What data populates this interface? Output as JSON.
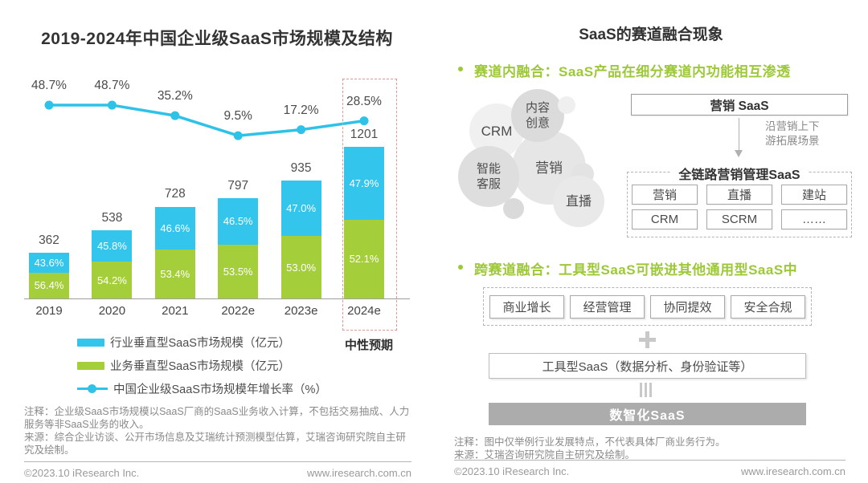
{
  "brand": {
    "copyright": "©2023.10 iResearch Inc.",
    "website": "www.iresearch.com.cn"
  },
  "colors": {
    "industry_blue": "#33C5EB",
    "business_green": "#A5CE3B",
    "growth_line_cyan": "#2FC2E8",
    "bullet_green": "#9DC838",
    "forecast_dashed_red": "#DC9B95",
    "digital_box_gray": "#ACACAC"
  },
  "left_panel": {
    "title": "2019-2024年中国企业级SaaS市场规模及结构",
    "forecast_label": "中性预期",
    "legend": {
      "items": [
        {
          "label": "行业垂直型SaaS市场规模（亿元）"
        },
        {
          "label": "业务垂直型SaaS市场规模（亿元）"
        },
        {
          "label": "中国企业级SaaS市场规模年增长率（%）"
        }
      ]
    },
    "notes": {
      "note1": "注释：企业级SaaS市场规模以SaaS厂商的SaaS业务收入计算，不包括交易抽成、人力服务等非SaaS业务的收入。",
      "note2": "来源：综合企业访谈、公开市场信息及艾瑞统计预测模型估算，艾瑞咨询研究院自主研究及绘制。"
    },
    "chart_data": {
      "type": "stacked-bar+line",
      "title": "2019-2024年中国企业级SaaS市场规模及结构",
      "categories": [
        "2019",
        "2020",
        "2021",
        "2022e",
        "2023e",
        "2024e"
      ],
      "totals": [
        362,
        538,
        728,
        797,
        935,
        1201
      ],
      "unit": "亿元",
      "series": [
        {
          "name": "行业垂直型SaaS市场规模（亿元）",
          "share_pct": [
            43.6,
            45.8,
            46.6,
            46.5,
            47.0,
            47.9
          ],
          "color": "#33C5EB"
        },
        {
          "name": "业务垂直型SaaS市场规模（亿元）",
          "share_pct": [
            56.4,
            54.2,
            53.4,
            53.5,
            53.0,
            52.1
          ],
          "color": "#A5CE3B"
        }
      ],
      "line": {
        "name": "中国企业级SaaS市场规模年增长率（%）",
        "values": [
          48.7,
          48.7,
          35.2,
          9.5,
          17.2,
          28.5
        ],
        "unit": "%",
        "color": "#2FC2E8"
      },
      "highlight_category": "2024e",
      "highlight_note": "中性预期",
      "legend_position": "bottom",
      "grid": false
    }
  },
  "right_panel": {
    "title": "SaaS的赛道融合现象",
    "bullet1": "赛道内融合：SaaS产品在细分赛道内功能相互渗透",
    "bullet2": "跨赛道融合：工具型SaaS可嵌进其他通用型SaaS中",
    "bubbles": {
      "crm": "CRM",
      "content": "内容创意",
      "marketing": "营销",
      "service": "智能客服",
      "live": "直播"
    },
    "marketing_saas_box": "营销 SaaS",
    "arrow_note": "沿营销上下\n游拓展场景",
    "chain": {
      "title": "全链路营销管理SaaS",
      "items": [
        "营销",
        "直播",
        "建站",
        "CRM",
        "SCRM",
        "……"
      ]
    },
    "tool_categories": [
      "商业增长",
      "经营管理",
      "协同提效",
      "安全合规"
    ],
    "tool_saas_box": "工具型SaaS（数据分析、身份验证等）",
    "digital_saas_box": "数智化SaaS",
    "notes": {
      "note1": "注释：图中仅举例行业发展特点，不代表具体厂商业务行为。",
      "note2": "来源：艾瑞咨询研究院自主研究及绘制。"
    }
  }
}
